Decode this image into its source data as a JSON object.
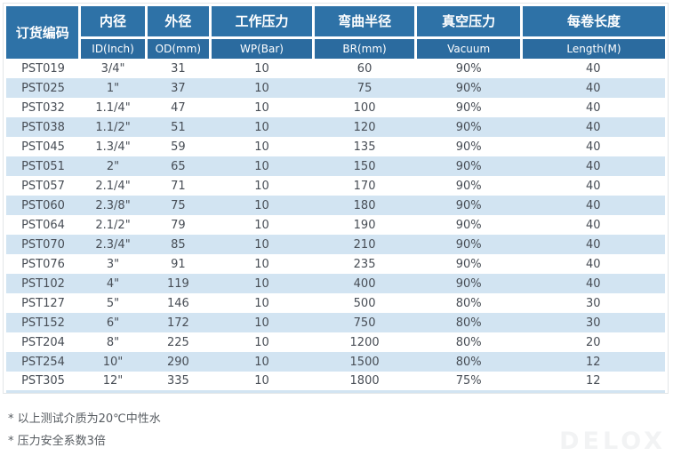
{
  "table": {
    "columns": [
      {
        "key": "code",
        "zh": "订货编码",
        "en": ""
      },
      {
        "key": "id",
        "zh": "内径",
        "en": "ID(Inch)"
      },
      {
        "key": "od",
        "zh": "外径",
        "en": "OD(mm)"
      },
      {
        "key": "wp",
        "zh": "工作压力",
        "en": "WP(Bar)"
      },
      {
        "key": "br",
        "zh": "弯曲半径",
        "en": "BR(mm)"
      },
      {
        "key": "vac",
        "zh": "真空压力",
        "en": "Vacuum"
      },
      {
        "key": "len",
        "zh": "每卷长度",
        "en": "Length(M)"
      }
    ],
    "rows": [
      [
        "PST019",
        "3/4\"",
        "31",
        "10",
        "60",
        "90%",
        "40"
      ],
      [
        "PST025",
        "1\"",
        "37",
        "10",
        "75",
        "90%",
        "40"
      ],
      [
        "PST032",
        "1.1/4\"",
        "47",
        "10",
        "100",
        "90%",
        "40"
      ],
      [
        "PST038",
        "1.1/2\"",
        "51",
        "10",
        "120",
        "90%",
        "40"
      ],
      [
        "PST045",
        "1.3/4\"",
        "59",
        "10",
        "135",
        "90%",
        "40"
      ],
      [
        "PST051",
        "2\"",
        "65",
        "10",
        "150",
        "90%",
        "40"
      ],
      [
        "PST057",
        "2.1/4\"",
        "71",
        "10",
        "170",
        "90%",
        "40"
      ],
      [
        "PST060",
        "2.3/8\"",
        "75",
        "10",
        "180",
        "90%",
        "40"
      ],
      [
        "PST064",
        "2.1/2\"",
        "79",
        "10",
        "190",
        "90%",
        "40"
      ],
      [
        "PST070",
        "2.3/4\"",
        "85",
        "10",
        "210",
        "90%",
        "40"
      ],
      [
        "PST076",
        "3\"",
        "91",
        "10",
        "235",
        "90%",
        "40"
      ],
      [
        "PST102",
        "4\"",
        "119",
        "10",
        "400",
        "90%",
        "40"
      ],
      [
        "PST127",
        "5\"",
        "146",
        "10",
        "500",
        "80%",
        "30"
      ],
      [
        "PST152",
        "6\"",
        "172",
        "10",
        "750",
        "80%",
        "30"
      ],
      [
        "PST204",
        "8\"",
        "225",
        "10",
        "1200",
        "80%",
        "20"
      ],
      [
        "PST254",
        "10\"",
        "290",
        "10",
        "1500",
        "80%",
        "12"
      ],
      [
        "PST305",
        "12\"",
        "335",
        "10",
        "1800",
        "75%",
        "12"
      ]
    ]
  },
  "notes": [
    "* 以上测试介质为20℃中性水",
    "* 压力安全系数3倍"
  ],
  "watermark": "DELOX",
  "colors": {
    "header_blue": "#2e72a7",
    "subheader_blue": "#2b6b9f",
    "row_stripe": "#d2e4f2",
    "data_text": "#474d55"
  }
}
